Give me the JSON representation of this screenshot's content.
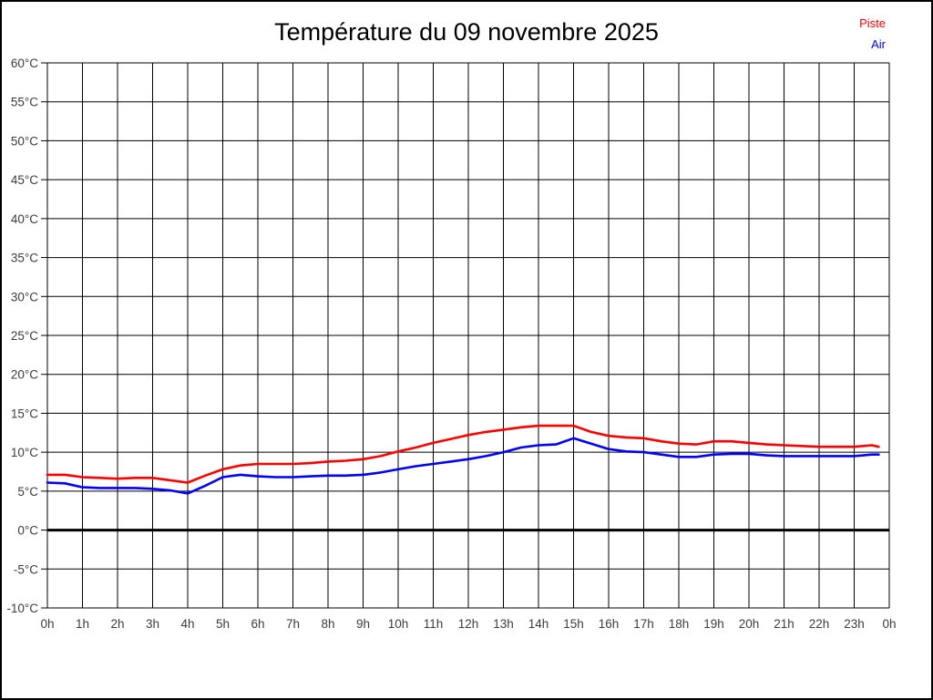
{
  "title": "Température du 09 novembre 2025",
  "legend": [
    {
      "label": "Piste",
      "color": "#ff0000"
    },
    {
      "label": "Air",
      "color": "#0000ff"
    }
  ],
  "chart_data": {
    "type": "line",
    "title": "Température du 09 novembre 2025",
    "x_unit": "hour of day",
    "x": [
      0,
      0.5,
      1,
      1.5,
      2,
      2.5,
      3,
      3.5,
      4,
      4.5,
      5,
      5.5,
      6,
      6.5,
      7,
      7.5,
      8,
      8.5,
      9,
      9.5,
      10,
      10.5,
      11,
      11.5,
      12,
      12.5,
      13,
      13.5,
      14,
      14.5,
      15,
      15.5,
      16,
      16.5,
      17,
      17.5,
      18,
      18.5,
      19,
      19.5,
      20,
      20.5,
      21,
      21.5,
      22,
      22.5,
      23,
      23.5,
      23.7
    ],
    "series": [
      {
        "name": "Piste",
        "color": "#ff0000",
        "values": [
          7.1,
          7.1,
          6.8,
          6.7,
          6.6,
          6.7,
          6.7,
          6.4,
          6.1,
          7.0,
          7.8,
          8.3,
          8.5,
          8.5,
          8.5,
          8.6,
          8.8,
          8.9,
          9.1,
          9.5,
          10.1,
          10.6,
          11.2,
          11.7,
          12.2,
          12.6,
          12.9,
          13.2,
          13.4,
          13.4,
          13.4,
          12.6,
          12.1,
          11.9,
          11.8,
          11.4,
          11.1,
          11.0,
          11.4,
          11.4,
          11.2,
          11.0,
          10.9,
          10.8,
          10.7,
          10.7,
          10.7,
          10.9,
          10.7
        ]
      },
      {
        "name": "Air",
        "color": "#0000ff",
        "values": [
          6.1,
          6.0,
          5.5,
          5.4,
          5.4,
          5.4,
          5.3,
          5.1,
          4.7,
          5.7,
          6.8,
          7.1,
          6.9,
          6.8,
          6.8,
          6.9,
          7.0,
          7.0,
          7.1,
          7.4,
          7.8,
          8.2,
          8.5,
          8.8,
          9.1,
          9.5,
          10.0,
          10.6,
          10.9,
          11.0,
          11.8,
          11.1,
          10.4,
          10.1,
          10.0,
          9.7,
          9.4,
          9.4,
          9.7,
          9.8,
          9.8,
          9.6,
          9.5,
          9.5,
          9.5,
          9.5,
          9.5,
          9.7,
          9.7
        ]
      }
    ],
    "xlim": [
      0,
      24
    ],
    "ylim": [
      -10,
      60
    ],
    "ytick_step": 5,
    "ytick_labels": [
      "-10°C",
      "-5°C",
      "0°C",
      "5°C",
      "10°C",
      "15°C",
      "20°C",
      "25°C",
      "30°C",
      "35°C",
      "40°C",
      "45°C",
      "50°C",
      "55°C",
      "60°C"
    ],
    "xtick_labels": [
      "0h",
      "1h",
      "2h",
      "3h",
      "4h",
      "5h",
      "6h",
      "7h",
      "8h",
      "9h",
      "10h",
      "11h",
      "12h",
      "13h",
      "14h",
      "15h",
      "16h",
      "17h",
      "18h",
      "19h",
      "20h",
      "21h",
      "22h",
      "23h",
      "0h"
    ],
    "grid": true,
    "grid_color": "#000000",
    "tick_label_color": "#3c3c3c",
    "zero_line": {
      "value": 0,
      "width": 3,
      "color": "#000000"
    },
    "legend_position": "top-right"
  }
}
